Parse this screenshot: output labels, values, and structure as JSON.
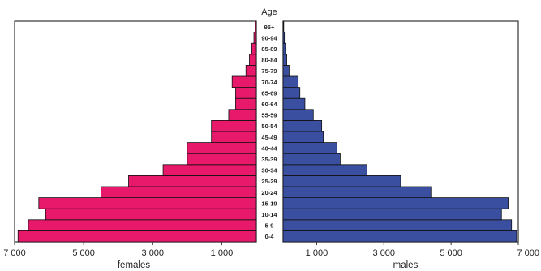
{
  "chart_data": {
    "type": "bar",
    "title": "",
    "center_label": "Age",
    "age_groups": [
      "0-4",
      "5-9",
      "10-14",
      "15-19",
      "20-24",
      "25-29",
      "30-34",
      "35-39",
      "40-44",
      "45-49",
      "50-54",
      "55-59",
      "60-64",
      "65-69",
      "70-74",
      "75-79",
      "80-84",
      "85-89",
      "90-94",
      "95+"
    ],
    "series": [
      {
        "name": "females",
        "color": "#e8186a",
        "values": [
          6900,
          6600,
          6100,
          6300,
          4500,
          3700,
          2700,
          2000,
          2000,
          1300,
          1300,
          800,
          600,
          600,
          700,
          300,
          200,
          130,
          70,
          30
        ]
      },
      {
        "name": "males",
        "color": "#3a4fa0",
        "values": [
          6950,
          6800,
          6500,
          6700,
          4400,
          3500,
          2500,
          1700,
          1600,
          1200,
          1150,
          900,
          650,
          500,
          450,
          180,
          110,
          70,
          40,
          20
        ]
      }
    ],
    "females_ticks": [
      "7 000",
      "5 000",
      "3 000",
      "1 000"
    ],
    "females_tick_values": [
      7000,
      5000,
      3000,
      1000
    ],
    "males_ticks": [
      "1 000",
      "3 000",
      "5 000",
      "7 000"
    ],
    "males_tick_values": [
      1000,
      3000,
      5000,
      7000
    ],
    "xlim": [
      0,
      7000
    ],
    "grid": false
  }
}
